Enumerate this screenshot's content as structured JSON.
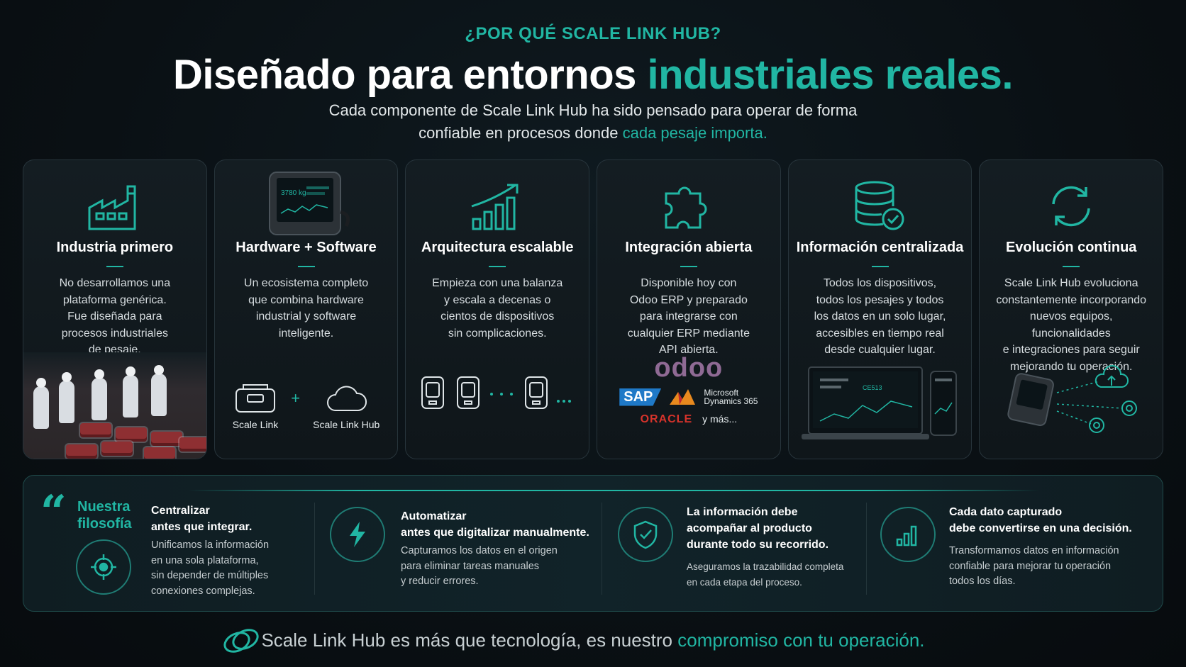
{
  "header": {
    "eyebrow": "¿POR QUÉ SCALE LINK HUB?",
    "headline_white": "Diseñado para entornos ",
    "headline_teal": "industriales reales.",
    "sub_line1": "Cada componente de Scale Link Hub ha sido pensado para operar de forma",
    "sub_line2_a": "confiable en procesos donde ",
    "sub_line2_teal": "cada pesaje importa."
  },
  "cards": [
    {
      "icon": "factory-icon",
      "title": "Industria primero",
      "body": [
        "No desarrollamos una",
        "plataforma genérica.",
        "Fue diseñada para",
        "procesos industriales",
        "de pesaje."
      ]
    },
    {
      "icon": "device-icon",
      "title": "Hardware + Software",
      "body": [
        "Un ecosistema completo",
        "que combina hardware",
        "industrial y software",
        "inteligente."
      ],
      "footer": {
        "left": "Scale Link",
        "plus": "+",
        "right": "Scale Link Hub"
      },
      "device_screen_value": "3780 kg"
    },
    {
      "icon": "growth-chart-icon",
      "title": "Arquitectura escalable",
      "body": [
        "Empieza con una balanza",
        "y escala a decenas o",
        "cientos de dispositivos",
        "sin complicaciones."
      ]
    },
    {
      "icon": "puzzle-icon",
      "title": "Integración abierta",
      "body": [
        "Disponible hoy con",
        "Odoo ERP y preparado",
        "para integrarse con",
        "cualquier ERP mediante",
        "API abierta."
      ],
      "logos": {
        "odoo": "odoo",
        "sap": "SAP",
        "ms_line1": "Microsoft",
        "ms_line2": "Dynamics 365",
        "oracle": "ORACLE",
        "more": "y más..."
      }
    },
    {
      "icon": "database-check-icon",
      "title": "Información centralizada",
      "body": [
        "Todos los dispositivos,",
        "todos los pesajes y todos",
        "los datos en un solo lugar,",
        "accesibles en tiempo real",
        "desde cualquier lugar."
      ],
      "dashboard_value": "CE513"
    },
    {
      "icon": "sync-icon",
      "title": "Evolución continua",
      "body": [
        "Scale Link Hub evoluciona",
        "constantemente incorporando",
        "nuevos equipos, funcionalidades",
        "e integraciones para seguir",
        "mejorando tu operación."
      ]
    }
  ],
  "philosophy": {
    "label_line1": "Nuestra",
    "label_line2": "filosofía",
    "items": [
      {
        "icon": "target-icon",
        "title": [
          "Centralizar",
          "antes que integrar."
        ],
        "body": [
          "Unificamos la información",
          "en una sola plataforma,",
          "sin depender de múltiples",
          "conexiones complejas."
        ]
      },
      {
        "icon": "lightning-icon",
        "title": [
          "Automatizar",
          "antes que digitalizar manualmente."
        ],
        "body": [
          "Capturamos los datos en el origen",
          "para eliminar tareas manuales",
          "y reducir errores."
        ]
      },
      {
        "icon": "shield-check-icon",
        "title": [
          "La información debe",
          "acompañar al producto",
          "durante todo su recorrido."
        ],
        "body": [
          "Aseguramos la trazabilidad completa",
          "en cada etapa del proceso."
        ]
      },
      {
        "icon": "bar-chart-icon",
        "title": [
          "Cada dato capturado",
          "debe convertirse en una decisión."
        ],
        "body": [
          "Transformamos datos en información",
          "confiable para mejorar tu operación",
          "todos los días."
        ]
      }
    ]
  },
  "footer": {
    "text_a": "Scale Link Hub es más que tecnología, es nuestro ",
    "text_teal": "compromiso con tu operación."
  },
  "colors": {
    "accent": "#21b6a3",
    "background": "#0a1014",
    "card": "#141d22"
  }
}
